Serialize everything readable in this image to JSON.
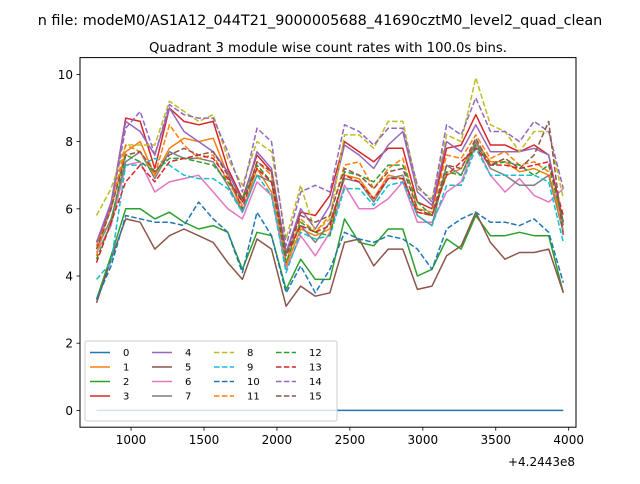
{
  "figure": {
    "suptitle": "n file: modeM0/AS1A12_044T21_9000005688_41690cztM0_level2_quad_clean",
    "offset_text": "+4.2443e8"
  },
  "chart_data": {
    "type": "line",
    "title": "Quadrant 3 module wise count rates with 100.0s bins.",
    "xlabel": "",
    "ylabel": "",
    "xlim": [
      650,
      4050
    ],
    "ylim": [
      -0.5,
      10.5
    ],
    "xticks": [
      1000,
      1500,
      2000,
      2500,
      3000,
      3500,
      4000
    ],
    "yticks": [
      0,
      2,
      4,
      6,
      8,
      10
    ],
    "grid": false,
    "legend": {
      "placement": "lower-left",
      "ncol": 4
    },
    "x": [
      763,
      863,
      963,
      1063,
      1163,
      1263,
      1363,
      1463,
      1563,
      1663,
      1763,
      1863,
      1963,
      2063,
      2163,
      2263,
      2363,
      2463,
      2563,
      2663,
      2763,
      2863,
      2963,
      3063,
      3163,
      3263,
      3363,
      3463,
      3563,
      3663,
      3763,
      3863,
      3963
    ],
    "series": [
      {
        "name": "0",
        "color": "#1f77b4",
        "dash": "solid",
        "values": [
          0,
          0,
          0,
          0,
          0,
          0,
          0,
          0,
          0,
          0,
          0,
          0,
          0,
          0,
          0,
          0,
          0,
          0,
          0,
          0,
          0,
          0,
          0,
          0,
          0,
          0,
          0,
          0,
          0,
          0,
          0,
          0,
          0
        ]
      },
      {
        "name": "1",
        "color": "#ff7f0e",
        "dash": "solid",
        "values": [
          4.9,
          6.0,
          7.7,
          8.0,
          7.0,
          7.8,
          8.1,
          8.0,
          8.1,
          7.0,
          5.9,
          7.2,
          6.5,
          4.3,
          5.4,
          5.2,
          5.4,
          7.0,
          6.9,
          6.3,
          7.0,
          6.9,
          5.9,
          5.8,
          7.0,
          7.2,
          8.0,
          7.4,
          7.4,
          7.1,
          7.2,
          7.0,
          5.6
        ]
      },
      {
        "name": "2",
        "color": "#2ca02c",
        "dash": "solid",
        "values": [
          3.3,
          4.6,
          6.0,
          6.0,
          5.7,
          5.9,
          5.6,
          5.4,
          5.5,
          5.3,
          4.2,
          5.3,
          5.2,
          3.6,
          4.5,
          3.9,
          3.9,
          5.7,
          5.0,
          4.9,
          5.4,
          5.4,
          4.0,
          4.2,
          5.1,
          4.8,
          5.8,
          5.2,
          5.2,
          5.3,
          5.2,
          5.2,
          3.5
        ]
      },
      {
        "name": "3",
        "color": "#d62728",
        "dash": "solid",
        "values": [
          5.0,
          6.1,
          8.7,
          8.6,
          7.2,
          9.0,
          8.6,
          8.5,
          8.6,
          7.2,
          6.3,
          7.6,
          7.1,
          4.7,
          5.9,
          5.8,
          6.4,
          8.0,
          7.7,
          7.4,
          7.8,
          7.8,
          6.2,
          6.0,
          7.8,
          7.9,
          8.8,
          7.9,
          7.9,
          7.7,
          7.9,
          7.6,
          5.6
        ]
      },
      {
        "name": "4",
        "color": "#9467bd",
        "dash": "solid",
        "values": [
          5.0,
          6.2,
          8.6,
          8.3,
          7.6,
          9.0,
          8.3,
          8.0,
          7.7,
          7.1,
          6.2,
          7.7,
          7.2,
          4.7,
          6.0,
          5.4,
          6.1,
          7.9,
          7.6,
          7.2,
          7.9,
          8.3,
          6.5,
          6.1,
          8.0,
          7.7,
          8.5,
          7.7,
          7.7,
          7.7,
          7.8,
          7.6,
          5.5
        ]
      },
      {
        "name": "5",
        "color": "#8c564b",
        "dash": "solid",
        "values": [
          3.2,
          4.5,
          5.7,
          5.6,
          4.8,
          5.2,
          5.4,
          5.2,
          5.0,
          4.4,
          3.9,
          5.1,
          4.8,
          3.1,
          3.7,
          3.4,
          3.5,
          5.0,
          5.1,
          4.3,
          4.8,
          4.8,
          3.6,
          3.7,
          4.6,
          4.9,
          5.9,
          5.0,
          4.5,
          4.7,
          4.7,
          4.8,
          3.5
        ]
      },
      {
        "name": "6",
        "color": "#e377c2",
        "dash": "solid",
        "values": [
          4.7,
          5.5,
          7.3,
          7.4,
          6.5,
          6.8,
          6.9,
          7.0,
          6.5,
          6.0,
          5.7,
          6.8,
          6.4,
          4.2,
          5.2,
          4.6,
          5.3,
          6.7,
          6.0,
          6.0,
          6.3,
          6.8,
          5.6,
          5.6,
          6.5,
          6.8,
          7.9,
          7.0,
          6.5,
          6.9,
          6.4,
          6.2,
          6.6
        ]
      },
      {
        "name": "7",
        "color": "#7f7f7f",
        "dash": "solid",
        "values": [
          4.8,
          5.7,
          7.4,
          7.7,
          6.9,
          7.7,
          7.5,
          7.5,
          7.4,
          6.7,
          5.9,
          7.0,
          6.8,
          4.7,
          5.5,
          5.0,
          5.6,
          6.9,
          6.8,
          6.2,
          6.9,
          7.0,
          5.8,
          5.5,
          7.3,
          7.0,
          8.0,
          7.2,
          7.0,
          6.7,
          6.7,
          7.0,
          5.3
        ]
      },
      {
        "name": "8",
        "color": "#bcbd22",
        "dash": "dashed",
        "values": [
          5.8,
          6.6,
          7.9,
          7.9,
          7.9,
          9.2,
          8.9,
          8.6,
          8.8,
          7.5,
          6.7,
          8.0,
          7.7,
          5.1,
          6.7,
          5.3,
          5.7,
          8.2,
          8.2,
          7.8,
          8.6,
          8.6,
          6.6,
          6.3,
          8.2,
          8.0,
          9.9,
          8.5,
          8.3,
          7.7,
          8.3,
          8.3,
          6.3
        ]
      },
      {
        "name": "9",
        "color": "#17becf",
        "dash": "dashed",
        "values": [
          3.9,
          4.4,
          7.3,
          7.3,
          7.5,
          7.3,
          7.0,
          6.9,
          6.9,
          6.6,
          5.9,
          7.0,
          6.4,
          4.1,
          5.3,
          5.1,
          5.2,
          6.6,
          6.6,
          6.1,
          6.7,
          6.8,
          5.8,
          5.5,
          6.7,
          6.7,
          7.8,
          7.0,
          7.0,
          7.0,
          7.0,
          6.8,
          5.0
        ]
      },
      {
        "name": "10",
        "color": "#1f77b4",
        "dash": "dashed",
        "values": [
          3.3,
          4.3,
          5.8,
          5.7,
          5.6,
          5.6,
          5.5,
          6.2,
          5.7,
          5.3,
          4.1,
          5.9,
          5.2,
          3.5,
          4.3,
          3.5,
          4.2,
          5.3,
          5.1,
          5.0,
          5.2,
          5.1,
          4.8,
          4.2,
          5.4,
          5.7,
          5.9,
          5.6,
          5.6,
          5.5,
          5.7,
          5.3,
          3.8
        ]
      },
      {
        "name": "11",
        "color": "#ff7f0e",
        "dash": "dashed",
        "values": [
          4.6,
          6.1,
          7.9,
          7.7,
          7.0,
          8.5,
          7.9,
          7.5,
          7.6,
          6.8,
          6.1,
          7.4,
          7.0,
          4.4,
          5.7,
          5.3,
          5.8,
          7.3,
          7.4,
          6.6,
          7.2,
          7.5,
          6.0,
          5.9,
          7.6,
          7.5,
          8.2,
          7.5,
          7.7,
          7.3,
          7.4,
          7.1,
          5.4
        ]
      },
      {
        "name": "12",
        "color": "#2ca02c",
        "dash": "dashed",
        "values": [
          4.5,
          5.6,
          7.6,
          7.4,
          7.1,
          7.5,
          7.5,
          7.4,
          7.3,
          6.8,
          6.3,
          7.3,
          6.8,
          4.4,
          5.6,
          5.3,
          5.2,
          7.1,
          7.0,
          6.8,
          7.3,
          7.3,
          6.2,
          5.8,
          7.1,
          7.0,
          7.9,
          7.3,
          7.4,
          7.3,
          7.0,
          7.3,
          5.6
        ]
      },
      {
        "name": "13",
        "color": "#d62728",
        "dash": "dashed",
        "values": [
          4.4,
          5.6,
          6.8,
          7.3,
          6.8,
          7.4,
          7.5,
          7.6,
          7.5,
          6.9,
          6.2,
          7.2,
          6.8,
          4.6,
          5.5,
          5.3,
          5.5,
          7.0,
          6.8,
          6.3,
          6.9,
          6.9,
          5.9,
          5.8,
          7.0,
          7.4,
          7.8,
          7.3,
          7.3,
          7.2,
          7.3,
          7.4,
          5.8
        ]
      },
      {
        "name": "14",
        "color": "#9467bd",
        "dash": "dashed",
        "values": [
          5.0,
          6.1,
          8.4,
          8.9,
          7.6,
          9.1,
          8.8,
          8.7,
          8.7,
          7.7,
          6.5,
          8.4,
          8.0,
          4.9,
          6.5,
          6.7,
          6.5,
          8.5,
          8.3,
          7.9,
          8.4,
          8.4,
          6.7,
          6.2,
          8.5,
          8.2,
          9.3,
          8.3,
          8.3,
          8.0,
          8.6,
          8.3,
          6.6
        ]
      },
      {
        "name": "15",
        "color": "#8c564b",
        "dash": "dashed",
        "values": [
          4.8,
          6.0,
          7.6,
          7.7,
          7.1,
          7.6,
          7.8,
          7.6,
          7.7,
          7.0,
          6.0,
          7.4,
          7.1,
          4.6,
          5.8,
          5.6,
          5.8,
          7.2,
          7.0,
          6.6,
          7.1,
          7.2,
          6.0,
          5.8,
          7.3,
          7.2,
          8.1,
          7.3,
          7.5,
          7.2,
          7.6,
          8.6,
          5.2
        ]
      }
    ]
  }
}
